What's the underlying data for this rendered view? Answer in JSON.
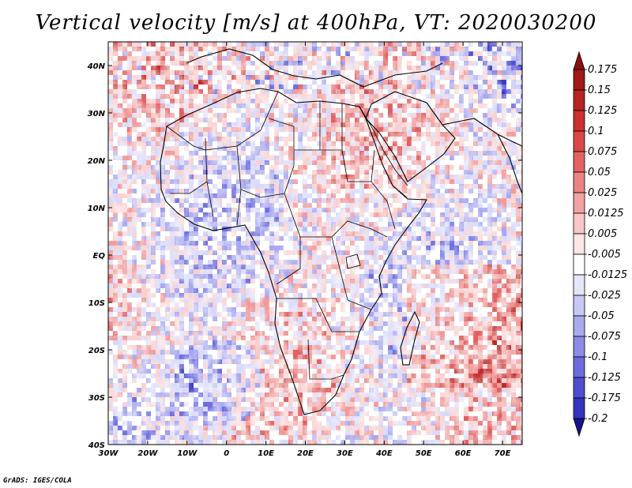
{
  "title": "Vertical velocity [m/s] at 400hPa, VT: 2020030200",
  "footer": "GrADS: IGES/COLA",
  "map": {
    "lon_range": [
      -30,
      75
    ],
    "lat_range": [
      -40,
      45
    ],
    "lon_ticks": [
      {
        "value": -30,
        "label": "30W"
      },
      {
        "value": -20,
        "label": "20W"
      },
      {
        "value": -10,
        "label": "10W"
      },
      {
        "value": 0,
        "label": "0"
      },
      {
        "value": 10,
        "label": "10E"
      },
      {
        "value": 20,
        "label": "20E"
      },
      {
        "value": 30,
        "label": "30E"
      },
      {
        "value": 40,
        "label": "40E"
      },
      {
        "value": 50,
        "label": "50E"
      },
      {
        "value": 60,
        "label": "60E"
      },
      {
        "value": 70,
        "label": "70E"
      }
    ],
    "lat_ticks": [
      {
        "value": 40,
        "label": "40N"
      },
      {
        "value": 30,
        "label": "30N"
      },
      {
        "value": 20,
        "label": "20N"
      },
      {
        "value": 10,
        "label": "10N"
      },
      {
        "value": 0,
        "label": "EQ"
      },
      {
        "value": -10,
        "label": "10S"
      },
      {
        "value": -20,
        "label": "20S"
      },
      {
        "value": -30,
        "label": "30S"
      },
      {
        "value": -40,
        "label": "40S"
      }
    ],
    "field_colors": [
      "#3b3bc8",
      "#6e6ee0",
      "#a8a8f0",
      "#d8d8fa",
      "#ffffff",
      "#f8d0d0",
      "#f09a9a",
      "#e06060",
      "#c02828"
    ],
    "coast_color": "#000000"
  },
  "colorbar": {
    "levels": [
      {
        "label": "0.175",
        "color": "#a01818"
      },
      {
        "label": "0.15",
        "color": "#b82222"
      },
      {
        "label": "0.125",
        "color": "#cc3030"
      },
      {
        "label": "0.1",
        "color": "#dc4646"
      },
      {
        "label": "0.075",
        "color": "#e46262"
      },
      {
        "label": "0.05",
        "color": "#ec8282"
      },
      {
        "label": "0.025",
        "color": "#f2a2a2"
      },
      {
        "label": "0.0125",
        "color": "#f8c6c6"
      },
      {
        "label": "0.005",
        "color": "#fce6e6"
      },
      {
        "label": "-0.005",
        "color": "#ffffff"
      },
      {
        "label": "-0.0125",
        "color": "#e6e6fa"
      },
      {
        "label": "-0.025",
        "color": "#c8c8f4"
      },
      {
        "label": "-0.05",
        "color": "#aaaaee"
      },
      {
        "label": "-0.075",
        "color": "#8c8ce6"
      },
      {
        "label": "-0.1",
        "color": "#6c6cdc"
      },
      {
        "label": "-0.125",
        "color": "#4e4ed0"
      },
      {
        "label": "-0.175",
        "color": "#3434c0"
      },
      {
        "label": "-0.2",
        "color": "#2020a8"
      }
    ],
    "top_arrow_color": "#8a1010",
    "bottom_arrow_color": "#14148c"
  }
}
